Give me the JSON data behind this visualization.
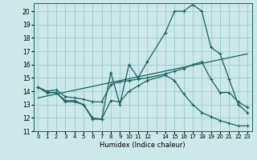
{
  "xlabel": "Humidex (Indice chaleur)",
  "background_color": "#cce8e8",
  "grid_color": "#99cccc",
  "line_color": "#1a6060",
  "xlim": [
    -0.5,
    23.5
  ],
  "ylim": [
    11.0,
    20.6
  ],
  "yticks": [
    11,
    12,
    13,
    14,
    15,
    16,
    17,
    18,
    19,
    20
  ],
  "xtick_labels": [
    "0",
    "1",
    "2",
    "3",
    "4",
    "5",
    "6",
    "7",
    "8",
    "9",
    "10",
    "11",
    "12",
    "",
    "14",
    "15",
    "16",
    "17",
    "18",
    "19",
    "20",
    "21",
    "22",
    "23"
  ],
  "line1_x": [
    0,
    1,
    2,
    3,
    4,
    5,
    6,
    7,
    8,
    9,
    10,
    11,
    12,
    14,
    15,
    16,
    17,
    18,
    19,
    20,
    21,
    22,
    23
  ],
  "line1_y": [
    14.3,
    13.9,
    13.9,
    13.3,
    13.3,
    13.0,
    12.0,
    11.9,
    15.4,
    13.0,
    16.0,
    15.0,
    16.2,
    18.4,
    20.0,
    20.0,
    20.5,
    20.0,
    17.3,
    16.8,
    14.9,
    13.0,
    12.4
  ],
  "line2_x": [
    0,
    1,
    2,
    3,
    4,
    5,
    6,
    7,
    8,
    9,
    10,
    11,
    12,
    14,
    15,
    16,
    17,
    18,
    19,
    20,
    21,
    22,
    23
  ],
  "line2_y": [
    14.3,
    13.9,
    13.9,
    13.2,
    13.2,
    13.0,
    11.9,
    11.9,
    13.3,
    13.2,
    14.0,
    14.4,
    14.8,
    15.2,
    14.8,
    13.8,
    13.0,
    12.4,
    12.1,
    11.8,
    11.6,
    11.4,
    11.4
  ],
  "line3_x": [
    0,
    1,
    2,
    3,
    4,
    5,
    6,
    7,
    8,
    9,
    10,
    11,
    12,
    14,
    15,
    16,
    17,
    18,
    19,
    20,
    21,
    22,
    23
  ],
  "line3_y": [
    14.3,
    14.0,
    14.1,
    13.6,
    13.5,
    13.4,
    13.2,
    13.2,
    14.5,
    14.7,
    14.8,
    14.9,
    15.0,
    15.3,
    15.5,
    15.7,
    16.0,
    16.2,
    14.9,
    13.9,
    13.9,
    13.2,
    12.8
  ],
  "trend_x": [
    0,
    23
  ],
  "trend_y": [
    13.5,
    16.8
  ]
}
